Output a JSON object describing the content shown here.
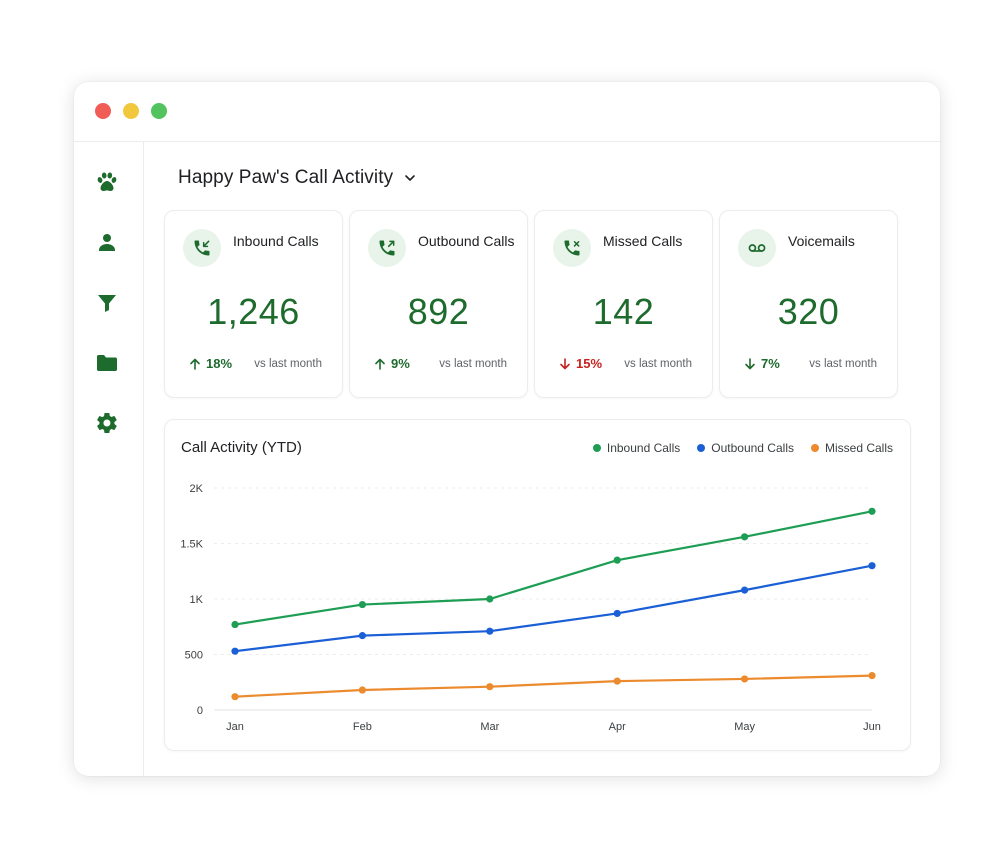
{
  "window": {
    "controls": [
      "close",
      "minimize",
      "maximize"
    ]
  },
  "sidebar": {
    "items": [
      {
        "name": "paw-icon",
        "label": "Home"
      },
      {
        "name": "person-icon",
        "label": "Contacts"
      },
      {
        "name": "filter-icon",
        "label": "Filters"
      },
      {
        "name": "folder-icon",
        "label": "Files"
      },
      {
        "name": "gear-icon",
        "label": "Settings"
      }
    ],
    "accent": "#1e6b2e"
  },
  "header": {
    "title": "Happy Paw's Call Activity"
  },
  "cards": [
    {
      "label": "Inbound Calls",
      "value": "1,246",
      "delta": "18%",
      "direction": "up",
      "compare": "vs last month",
      "icon": "phone-incoming-icon"
    },
    {
      "label": "Outbound Calls",
      "value": "892",
      "delta": "9%",
      "direction": "up",
      "compare": "vs last month",
      "icon": "phone-outgoing-icon"
    },
    {
      "label": "Missed Calls",
      "value": "142",
      "delta": "15%",
      "direction": "down",
      "compare": "vs last month",
      "icon": "phone-missed-icon"
    },
    {
      "label": "Voicemails",
      "value": "320",
      "delta": "7%",
      "direction": "down",
      "compare": "vs last month",
      "icon": "voicemail-icon"
    }
  ],
  "chart": {
    "title": "Call Activity (YTD)"
  },
  "chart_data": {
    "type": "line",
    "title": "Call Activity (YTD)",
    "xlabel": "",
    "ylabel": "",
    "categories": [
      "Jan",
      "Feb",
      "Mar",
      "Apr",
      "May",
      "Jun"
    ],
    "ylim": [
      0,
      2000
    ],
    "yticks": [
      0,
      500,
      1000,
      1500,
      2000
    ],
    "ytick_labels": [
      "0",
      "500",
      "1K",
      "1.5K",
      "2K"
    ],
    "grid": true,
    "legend_position": "top-right",
    "series": [
      {
        "name": "Inbound Calls",
        "color": "#1e9e55",
        "values": [
          770,
          950,
          1000,
          1350,
          1560,
          1790
        ]
      },
      {
        "name": "Outbound Calls",
        "color": "#1a5fd6",
        "values": [
          530,
          670,
          710,
          870,
          1080,
          1300
        ]
      },
      {
        "name": "Missed Calls",
        "color": "#ec8a2e",
        "values": [
          120,
          180,
          210,
          260,
          280,
          310
        ]
      }
    ]
  }
}
